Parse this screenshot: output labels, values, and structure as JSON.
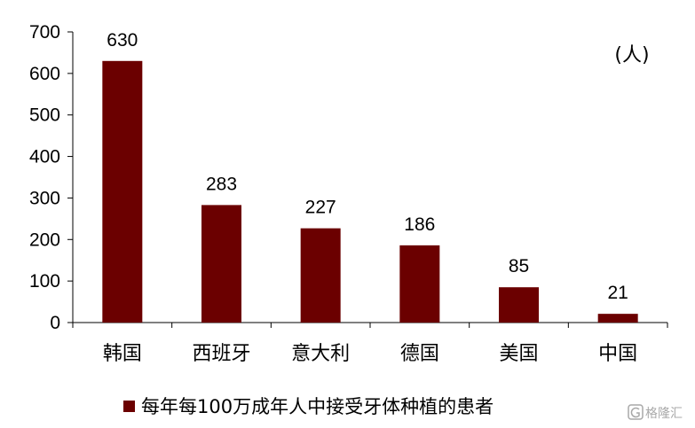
{
  "chart_data": {
    "type": "bar",
    "categories": [
      "韩国",
      "西班牙",
      "意大利",
      "德国",
      "美国",
      "中国"
    ],
    "series": [
      {
        "name": "每年每100万成年人中接受牙体种植的患者",
        "values": [
          630,
          283,
          227,
          186,
          85,
          21
        ],
        "color": "#6B0000"
      }
    ],
    "ylim": [
      0,
      700
    ],
    "yticks": [
      0,
      100,
      200,
      300,
      400,
      500,
      600,
      700
    ],
    "unit_label": "(人)",
    "grid": false,
    "legend_position": "bottom-center",
    "data_labels": true
  },
  "watermark": {
    "text": "格隆汇",
    "icon": "G-logo-icon",
    "color": "#9a9a9a"
  }
}
